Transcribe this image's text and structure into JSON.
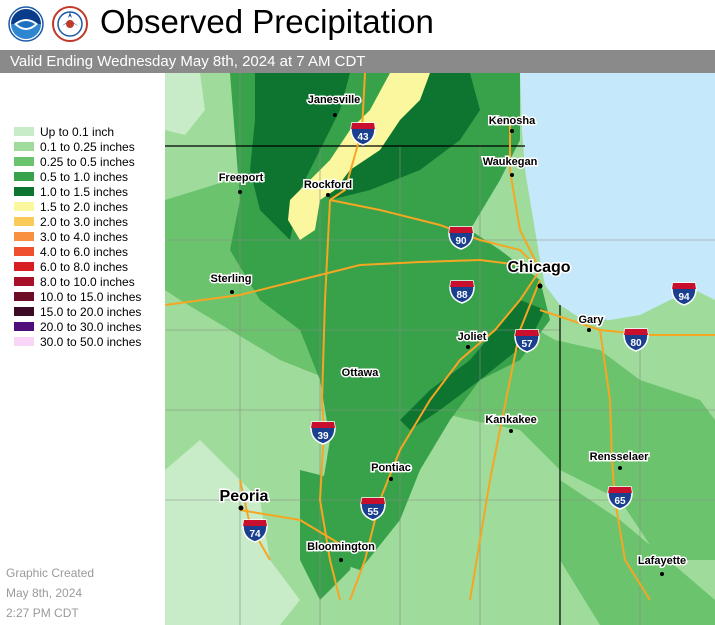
{
  "header": {
    "title": "Observed Precipitation",
    "subtitle": "Valid Ending Wednesday May 8th, 2024 at 7 AM CDT",
    "logos": [
      "noaa-logo",
      "nws-logo"
    ]
  },
  "legend": [
    {
      "label": "Up to 0.1 inch",
      "color": "#c8ebc8"
    },
    {
      "label": "0.1 to 0.25 inches",
      "color": "#9fdb9b"
    },
    {
      "label": "0.25 to 0.5 inches",
      "color": "#6cc36e"
    },
    {
      "label": "0.5 to 1.0 inches",
      "color": "#38a24a"
    },
    {
      "label": "1.0 to 1.5 inches",
      "color": "#0e7530"
    },
    {
      "label": "1.5 to 2.0 inches",
      "color": "#fbf79e"
    },
    {
      "label": "2.0 to 3.0 inches",
      "color": "#fbcb5a"
    },
    {
      "label": "3.0 to 4.0 inches",
      "color": "#f7913f"
    },
    {
      "label": "4.0 to 6.0 inches",
      "color": "#ef4f2f"
    },
    {
      "label": "6.0 to 8.0 inches",
      "color": "#d81e22"
    },
    {
      "label": "8.0 to 10.0 inches",
      "color": "#a80f28"
    },
    {
      "label": "10.0 to 15.0 inches",
      "color": "#6e0b25"
    },
    {
      "label": "15.0 to 20.0 inches",
      "color": "#3c0a24"
    },
    {
      "label": "20.0 to 30.0 inches",
      "color": "#4f0f7a"
    },
    {
      "label": "30.0 to 50.0 inches",
      "color": "#f9d6f7"
    }
  ],
  "credit": [
    "Graphic Created",
    "May 8th, 2024",
    "2:27 PM CDT"
  ],
  "map": {
    "cities": [
      {
        "name": "Janesville",
        "major": false
      },
      {
        "name": "Kenosha",
        "major": false
      },
      {
        "name": "Freeport",
        "major": false
      },
      {
        "name": "Rockford",
        "major": false
      },
      {
        "name": "Waukegan",
        "major": false
      },
      {
        "name": "Chicago",
        "major": true
      },
      {
        "name": "Sterling",
        "major": false
      },
      {
        "name": "Gary",
        "major": false
      },
      {
        "name": "Joliet",
        "major": false
      },
      {
        "name": "Ottawa",
        "major": false
      },
      {
        "name": "Kankakee",
        "major": false
      },
      {
        "name": "Rensselaer",
        "major": false
      },
      {
        "name": "Pontiac",
        "major": false
      },
      {
        "name": "Peoria",
        "major": true
      },
      {
        "name": "Bloomington",
        "major": false
      },
      {
        "name": "Lafayette",
        "major": false
      }
    ],
    "shields": [
      "43",
      "90",
      "88",
      "94",
      "57",
      "80",
      "39",
      "55",
      "65",
      "74"
    ],
    "colors": {
      "lake": "#c6e8fb",
      "road": "#f5a623",
      "border": "#8a8a8a",
      "state_line": "#000000"
    }
  }
}
